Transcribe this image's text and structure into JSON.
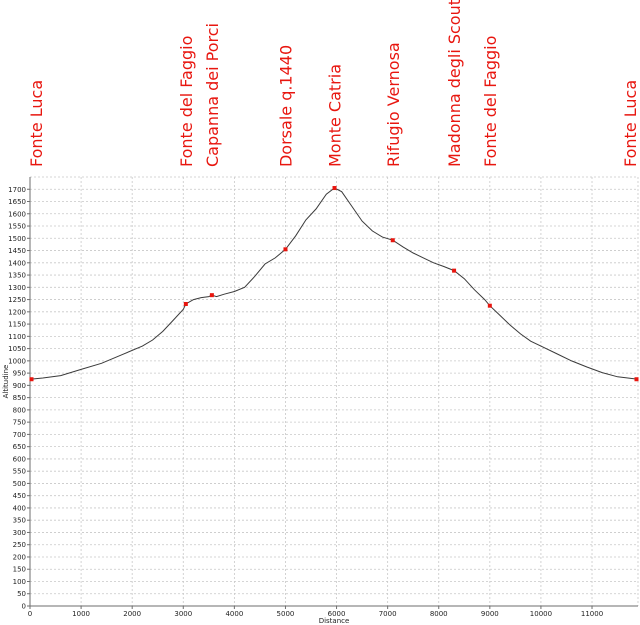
{
  "chart_data": {
    "type": "line",
    "title": "",
    "xlabel": "Distance",
    "ylabel": "Altitudine",
    "xlim": [
      0,
      11900
    ],
    "ylim": [
      0,
      1750
    ],
    "x_ticks": [
      0,
      1000,
      2000,
      3000,
      4000,
      5000,
      6000,
      7000,
      8000,
      9000,
      10000,
      11000
    ],
    "y_ticks": [
      0,
      50,
      100,
      150,
      200,
      250,
      300,
      350,
      400,
      450,
      500,
      550,
      600,
      650,
      700,
      750,
      800,
      850,
      900,
      950,
      1000,
      1050,
      1100,
      1150,
      1200,
      1250,
      1300,
      1350,
      1400,
      1450,
      1500,
      1550,
      1600,
      1650,
      1700
    ],
    "grid": true,
    "series": [
      {
        "x": [
          0,
          250,
          600,
          1000,
          1400,
          1800,
          2200,
          2400,
          2600,
          2800,
          3000,
          3050,
          3200,
          3350,
          3500,
          3560,
          3650,
          3800,
          4000,
          4200,
          4400,
          4600,
          4800,
          5000,
          5200,
          5400,
          5600,
          5800,
          5960,
          6100,
          6300,
          6500,
          6700,
          6900,
          7100,
          7300,
          7500,
          7700,
          7900,
          8100,
          8300,
          8500,
          8700,
          8900,
          9000,
          9200,
          9400,
          9600,
          9800,
          10000,
          10300,
          10600,
          10900,
          11200,
          11500,
          11900
        ],
        "y": [
          925,
          930,
          940,
          965,
          990,
          1025,
          1060,
          1085,
          1120,
          1165,
          1210,
          1232,
          1250,
          1258,
          1262,
          1268,
          1262,
          1272,
          1283,
          1300,
          1345,
          1395,
          1420,
          1455,
          1510,
          1575,
          1620,
          1680,
          1705,
          1690,
          1630,
          1570,
          1530,
          1505,
          1492,
          1465,
          1440,
          1420,
          1400,
          1385,
          1368,
          1335,
          1290,
          1250,
          1225,
          1185,
          1145,
          1110,
          1080,
          1060,
          1030,
          1000,
          975,
          952,
          935,
          925
        ]
      }
    ],
    "waypoints": [
      {
        "label": "Fonte Luca",
        "x": 0,
        "y": 925
      },
      {
        "label": "Fonte del Faggio",
        "x": 3050,
        "y": 1232
      },
      {
        "label": "Capanna dei Porci",
        "x": 3560,
        "y": 1268
      },
      {
        "label": "Dorsale q.1440",
        "x": 5000,
        "y": 1455
      },
      {
        "label": "Monte Catria",
        "x": 5960,
        "y": 1705
      },
      {
        "label": "Rifugio Vernosa",
        "x": 7100,
        "y": 1492
      },
      {
        "label": "Madonna degli Scout",
        "x": 8300,
        "y": 1368
      },
      {
        "label": "Fonte del Faggio",
        "x": 9000,
        "y": 1225
      },
      {
        "label": "Fonte Luca",
        "x": 11900,
        "y": 925
      }
    ],
    "colors": {
      "waypoint": "#e8160f",
      "line": "#3a3a3a",
      "grid": "#c8c8c8",
      "axis": "#6e6e6e"
    }
  }
}
